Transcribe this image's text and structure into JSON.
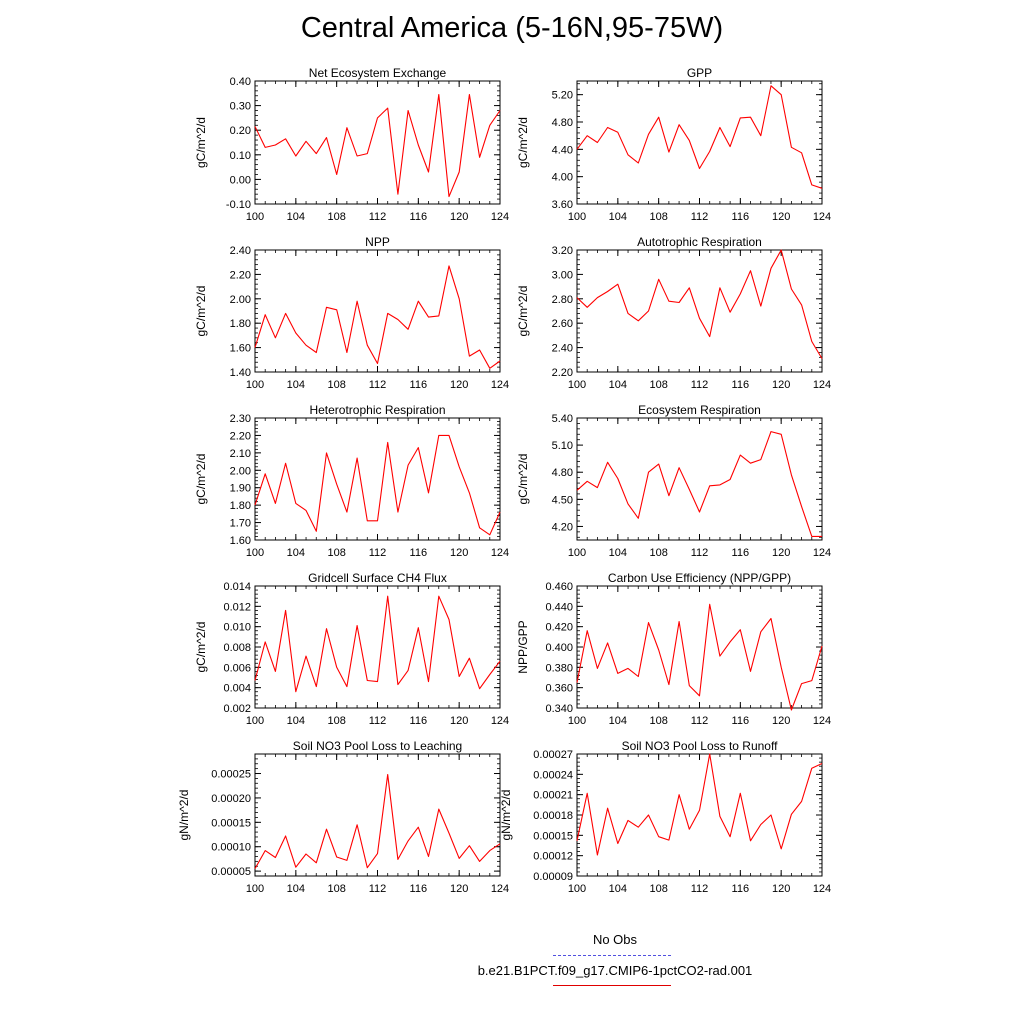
{
  "title": "Central America (5-16N,95-75W)",
  "legend": {
    "entries": [
      {
        "label": "No Obs",
        "color": "#5050e0",
        "style": "dashed"
      },
      {
        "label": "b.e21.B1PCT.f09_g17.CMIP6-1pctCO2-rad.001",
        "color": "#e00000",
        "style": "solid"
      }
    ]
  },
  "line_color": "#ff0000",
  "chart_data": [
    {
      "type": "line",
      "title": "Net Ecosystem Exchange",
      "ylabel": "gC/m^2/d",
      "xlim": [
        100,
        124
      ],
      "ylim": [
        -0.1,
        0.4
      ],
      "xticks": [
        100,
        104,
        108,
        112,
        116,
        120,
        124
      ],
      "xtick_labels": [
        "100",
        "104",
        "108",
        "112",
        "116",
        "120",
        "124"
      ],
      "yticks": [
        -0.1,
        0.0,
        0.1,
        0.2,
        0.3,
        0.4
      ],
      "ytick_labels": [
        "-0.10",
        "0.00",
        "0.10",
        "0.20",
        "0.30",
        "0.40"
      ],
      "x": [
        100,
        101,
        102,
        103,
        104,
        105,
        106,
        107,
        108,
        109,
        110,
        111,
        112,
        113,
        114,
        115,
        116,
        117,
        118,
        119,
        120,
        121,
        122,
        123,
        124
      ],
      "y": [
        0.215,
        0.13,
        0.14,
        0.165,
        0.095,
        0.155,
        0.105,
        0.17,
        0.02,
        0.21,
        0.095,
        0.105,
        0.25,
        0.29,
        -0.06,
        0.28,
        0.14,
        0.03,
        0.345,
        -0.07,
        0.03,
        0.345,
        0.09,
        0.22,
        0.28
      ]
    },
    {
      "type": "line",
      "title": "GPP",
      "ylabel": "gC/m^2/d",
      "xlim": [
        100,
        124
      ],
      "ylim": [
        3.6,
        5.4
      ],
      "xticks": [
        100,
        104,
        108,
        112,
        116,
        120,
        124
      ],
      "xtick_labels": [
        "100",
        "104",
        "108",
        "112",
        "116",
        "120",
        "124"
      ],
      "yticks": [
        3.6,
        4.0,
        4.4,
        4.8,
        5.2
      ],
      "ytick_labels": [
        "3.60",
        "4.00",
        "4.40",
        "4.80",
        "5.20"
      ],
      "x": [
        100,
        101,
        102,
        103,
        104,
        105,
        106,
        107,
        108,
        109,
        110,
        111,
        112,
        113,
        114,
        115,
        116,
        117,
        118,
        119,
        120,
        121,
        122,
        123,
        124
      ],
      "y": [
        4.4,
        4.6,
        4.5,
        4.72,
        4.65,
        4.32,
        4.2,
        4.62,
        4.87,
        4.36,
        4.76,
        4.53,
        4.12,
        4.37,
        4.72,
        4.44,
        4.86,
        4.87,
        4.6,
        5.33,
        5.2,
        4.43,
        4.35,
        3.88,
        3.83
      ]
    },
    {
      "type": "line",
      "title": "NPP",
      "ylabel": "gC/m^2/d",
      "xlim": [
        100,
        124
      ],
      "ylim": [
        1.4,
        2.4
      ],
      "xticks": [
        100,
        104,
        108,
        112,
        116,
        120,
        124
      ],
      "xtick_labels": [
        "100",
        "104",
        "108",
        "112",
        "116",
        "120",
        "124"
      ],
      "yticks": [
        1.4,
        1.6,
        1.8,
        2.0,
        2.2,
        2.4
      ],
      "ytick_labels": [
        "1.40",
        "1.60",
        "1.80",
        "2.00",
        "2.20",
        "2.40"
      ],
      "x": [
        100,
        101,
        102,
        103,
        104,
        105,
        106,
        107,
        108,
        109,
        110,
        111,
        112,
        113,
        114,
        115,
        116,
        117,
        118,
        119,
        120,
        121,
        122,
        123,
        124
      ],
      "y": [
        1.6,
        1.87,
        1.68,
        1.88,
        1.72,
        1.62,
        1.56,
        1.93,
        1.91,
        1.56,
        1.98,
        1.62,
        1.47,
        1.88,
        1.83,
        1.75,
        1.98,
        1.85,
        1.86,
        2.27,
        2.0,
        1.53,
        1.58,
        1.43,
        1.49
      ]
    },
    {
      "type": "line",
      "title": "Autotrophic Respiration",
      "ylabel": "gC/m^2/d",
      "xlim": [
        100,
        124
      ],
      "ylim": [
        2.2,
        3.2
      ],
      "xticks": [
        100,
        104,
        108,
        112,
        116,
        120,
        124
      ],
      "xtick_labels": [
        "100",
        "104",
        "108",
        "112",
        "116",
        "120",
        "124"
      ],
      "yticks": [
        2.2,
        2.4,
        2.6,
        2.8,
        3.0,
        3.2
      ],
      "ytick_labels": [
        "2.20",
        "2.40",
        "2.60",
        "2.80",
        "3.00",
        "3.20"
      ],
      "x": [
        100,
        101,
        102,
        103,
        104,
        105,
        106,
        107,
        108,
        109,
        110,
        111,
        112,
        113,
        114,
        115,
        116,
        117,
        118,
        119,
        120,
        121,
        122,
        123,
        124
      ],
      "y": [
        2.81,
        2.73,
        2.81,
        2.86,
        2.92,
        2.68,
        2.62,
        2.7,
        2.96,
        2.78,
        2.77,
        2.89,
        2.64,
        2.49,
        2.89,
        2.69,
        2.84,
        3.03,
        2.74,
        3.05,
        3.2,
        2.88,
        2.75,
        2.45,
        2.31
      ]
    },
    {
      "type": "line",
      "title": "Heterotrophic Respiration",
      "ylabel": "gC/m^2/d",
      "xlim": [
        100,
        124
      ],
      "ylim": [
        1.6,
        2.3
      ],
      "xticks": [
        100,
        104,
        108,
        112,
        116,
        120,
        124
      ],
      "xtick_labels": [
        "100",
        "104",
        "108",
        "112",
        "116",
        "120",
        "124"
      ],
      "yticks": [
        1.6,
        1.7,
        1.8,
        1.9,
        2.0,
        2.1,
        2.2,
        2.3
      ],
      "ytick_labels": [
        "1.60",
        "1.70",
        "1.80",
        "1.90",
        "2.00",
        "2.10",
        "2.20",
        "2.30"
      ],
      "x": [
        100,
        101,
        102,
        103,
        104,
        105,
        106,
        107,
        108,
        109,
        110,
        111,
        112,
        113,
        114,
        115,
        116,
        117,
        118,
        119,
        120,
        121,
        122,
        123,
        124
      ],
      "y": [
        1.8,
        1.98,
        1.81,
        2.04,
        1.81,
        1.77,
        1.65,
        2.1,
        1.92,
        1.76,
        2.07,
        1.71,
        1.71,
        2.16,
        1.76,
        2.03,
        2.13,
        1.87,
        2.2,
        2.2,
        2.02,
        1.87,
        1.67,
        1.63,
        1.76
      ]
    },
    {
      "type": "line",
      "title": "Ecosystem Respiration",
      "ylabel": "gC/m^2/d",
      "xlim": [
        100,
        124
      ],
      "ylim": [
        4.05,
        5.4
      ],
      "xticks": [
        100,
        104,
        108,
        112,
        116,
        120,
        124
      ],
      "xtick_labels": [
        "100",
        "104",
        "108",
        "112",
        "116",
        "120",
        "124"
      ],
      "yticks": [
        4.2,
        4.5,
        4.8,
        5.1,
        5.4
      ],
      "ytick_labels": [
        "4.20",
        "4.50",
        "4.80",
        "5.10",
        "5.40"
      ],
      "x": [
        100,
        101,
        102,
        103,
        104,
        105,
        106,
        107,
        108,
        109,
        110,
        111,
        112,
        113,
        114,
        115,
        116,
        117,
        118,
        119,
        120,
        121,
        122,
        123,
        124
      ],
      "y": [
        4.6,
        4.7,
        4.63,
        4.91,
        4.73,
        4.45,
        4.29,
        4.8,
        4.89,
        4.54,
        4.85,
        4.61,
        4.36,
        4.65,
        4.66,
        4.72,
        4.99,
        4.9,
        4.94,
        5.25,
        5.22,
        4.77,
        4.42,
        4.09,
        4.09
      ]
    },
    {
      "type": "line",
      "title": "Gridcell Surface CH4 Flux",
      "ylabel": "gC/m^2/d",
      "xlim": [
        100,
        124
      ],
      "ylim": [
        0.002,
        0.014
      ],
      "xticks": [
        100,
        104,
        108,
        112,
        116,
        120,
        124
      ],
      "xtick_labels": [
        "100",
        "104",
        "108",
        "112",
        "116",
        "120",
        "124"
      ],
      "yticks": [
        0.002,
        0.004,
        0.006,
        0.008,
        0.01,
        0.012,
        0.014
      ],
      "ytick_labels": [
        "0.002",
        "0.004",
        "0.006",
        "0.008",
        "0.010",
        "0.012",
        "0.014"
      ],
      "x": [
        100,
        101,
        102,
        103,
        104,
        105,
        106,
        107,
        108,
        109,
        110,
        111,
        112,
        113,
        114,
        115,
        116,
        117,
        118,
        119,
        120,
        121,
        122,
        123,
        124
      ],
      "y": [
        0.0047,
        0.0085,
        0.0056,
        0.0116,
        0.0036,
        0.0071,
        0.0041,
        0.0098,
        0.006,
        0.0041,
        0.0101,
        0.0047,
        0.0046,
        0.013,
        0.0043,
        0.0057,
        0.0099,
        0.0046,
        0.013,
        0.0107,
        0.0051,
        0.0069,
        0.0039,
        0.0053,
        0.0066
      ]
    },
    {
      "type": "line",
      "title": "Carbon Use Efficiency (NPP/GPP)",
      "ylabel": "NPP/GPP",
      "xlim": [
        100,
        124
      ],
      "ylim": [
        0.34,
        0.46
      ],
      "xticks": [
        100,
        104,
        108,
        112,
        116,
        120,
        124
      ],
      "xtick_labels": [
        "100",
        "104",
        "108",
        "112",
        "116",
        "120",
        "124"
      ],
      "yticks": [
        0.34,
        0.36,
        0.38,
        0.4,
        0.42,
        0.44,
        0.46
      ],
      "ytick_labels": [
        "0.340",
        "0.360",
        "0.380",
        "0.400",
        "0.420",
        "0.440",
        "0.460"
      ],
      "x": [
        100,
        101,
        102,
        103,
        104,
        105,
        106,
        107,
        108,
        109,
        110,
        111,
        112,
        113,
        114,
        115,
        116,
        117,
        118,
        119,
        120,
        121,
        122,
        123,
        124
      ],
      "y": [
        0.365,
        0.416,
        0.379,
        0.404,
        0.374,
        0.379,
        0.371,
        0.424,
        0.397,
        0.363,
        0.425,
        0.362,
        0.352,
        0.442,
        0.391,
        0.405,
        0.417,
        0.376,
        0.415,
        0.428,
        0.38,
        0.338,
        0.364,
        0.367,
        0.401
      ]
    },
    {
      "type": "line",
      "title": "Soil NO3 Pool Loss to Leaching",
      "ylabel": "gN/m^2/d",
      "xlim": [
        100,
        124
      ],
      "ylim": [
        4e-05,
        0.00029
      ],
      "xticks": [
        100,
        104,
        108,
        112,
        116,
        120,
        124
      ],
      "xtick_labels": [
        "100",
        "104",
        "108",
        "112",
        "116",
        "120",
        "124"
      ],
      "yticks": [
        5e-05,
        0.0001,
        0.00015,
        0.0002,
        0.00025
      ],
      "ytick_labels": [
        "0.00005",
        "0.00010",
        "0.00015",
        "0.00020",
        "0.00025"
      ],
      "x": [
        100,
        101,
        102,
        103,
        104,
        105,
        106,
        107,
        108,
        109,
        110,
        111,
        112,
        113,
        114,
        115,
        116,
        117,
        118,
        119,
        120,
        121,
        122,
        123,
        124
      ],
      "y": [
        5.5e-05,
        9.2e-05,
        7.8e-05,
        0.000122,
        5.8e-05,
        8.5e-05,
        6.7e-05,
        0.000136,
        7.9e-05,
        7.2e-05,
        0.000145,
        5.7e-05,
        8.6e-05,
        0.000248,
        7.4e-05,
        0.000112,
        0.00014,
        8e-05,
        0.000177,
        0.000128,
        7.6e-05,
        0.000102,
        7e-05,
        9.2e-05,
        0.000106
      ]
    },
    {
      "type": "line",
      "title": "Soil NO3 Pool Loss to Runoff",
      "ylabel": "gN/m^2/d",
      "xlim": [
        100,
        124
      ],
      "ylim": [
        9e-05,
        0.00027
      ],
      "xticks": [
        100,
        104,
        108,
        112,
        116,
        120,
        124
      ],
      "xtick_labels": [
        "100",
        "104",
        "108",
        "112",
        "116",
        "120",
        "124"
      ],
      "yticks": [
        9e-05,
        0.00012,
        0.00015,
        0.00018,
        0.00021,
        0.00024,
        0.00027
      ],
      "ytick_labels": [
        "0.00009",
        "0.00012",
        "0.00015",
        "0.00018",
        "0.00021",
        "0.00024",
        "0.00027"
      ],
      "x": [
        100,
        101,
        102,
        103,
        104,
        105,
        106,
        107,
        108,
        109,
        110,
        111,
        112,
        113,
        114,
        115,
        116,
        117,
        118,
        119,
        120,
        121,
        122,
        123,
        124
      ],
      "y": [
        0.000142,
        0.000212,
        0.000121,
        0.00019,
        0.000138,
        0.000172,
        0.000162,
        0.00018,
        0.000148,
        0.000143,
        0.00021,
        0.000159,
        0.000187,
        0.00027,
        0.000178,
        0.000148,
        0.000212,
        0.000142,
        0.000166,
        0.00018,
        0.00013,
        0.000181,
        0.0002,
        0.000249,
        0.000256
      ]
    }
  ]
}
